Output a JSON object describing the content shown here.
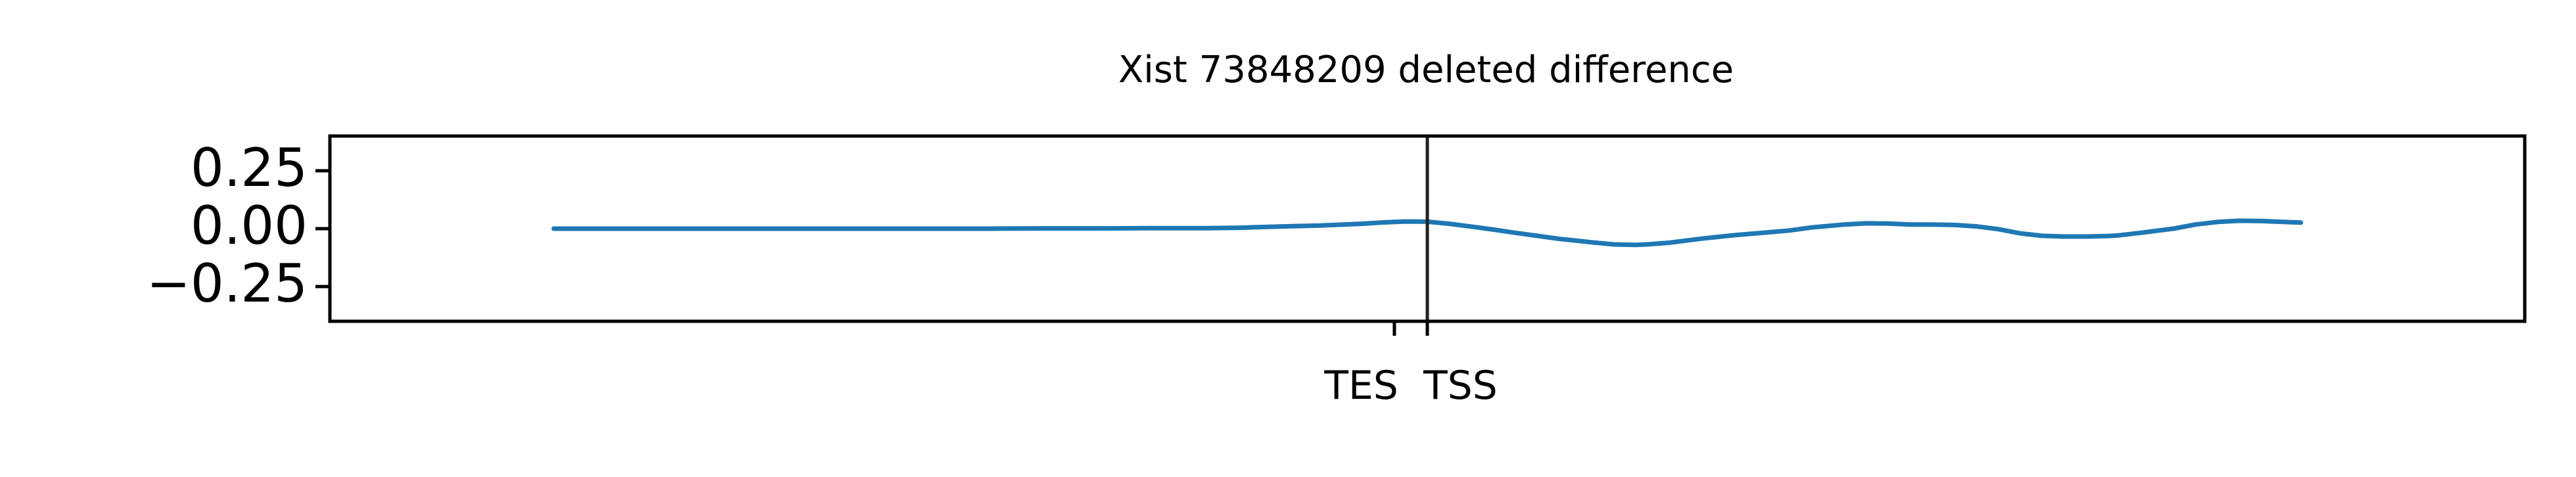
{
  "chart_data": {
    "type": "line",
    "title": "Xist 73848209 deleted difference",
    "xlabel": "",
    "ylabel": "",
    "ylim": [
      -0.4,
      0.4
    ],
    "yticks": [
      {
        "value": 0.25,
        "label": "0.25"
      },
      {
        "value": 0.0,
        "label": "0.00"
      },
      {
        "value": -0.25,
        "label": "−0.25"
      }
    ],
    "xlim": [
      -100,
      100
    ],
    "xticks": [
      {
        "value": -3,
        "label": "TES"
      },
      {
        "value": 0,
        "label": "TSS"
      }
    ],
    "vline": 0,
    "grid": false,
    "legend": "none",
    "series": [
      {
        "color": "#1f77b4",
        "x": [
          -79.6,
          -75,
          -70,
          -65,
          -60,
          -55,
          -50,
          -45,
          -40,
          -35,
          -30,
          -25,
          -20,
          -17,
          -15,
          -12,
          -10,
          -8,
          -6,
          -4,
          -2,
          0,
          2,
          4,
          6,
          8,
          10,
          12,
          15,
          17,
          19,
          20,
          22,
          25,
          28,
          30,
          33,
          35,
          38,
          40,
          42,
          44,
          46,
          48,
          50,
          52,
          54,
          56,
          58,
          60,
          62,
          63,
          65,
          68,
          70,
          72,
          74,
          76,
          78,
          79.6
        ],
        "y": [
          0.0,
          0.0,
          0.0,
          0.0,
          0.0,
          0.0,
          0.0,
          0.0,
          0.0,
          0.001,
          0.001,
          0.002,
          0.002,
          0.004,
          0.007,
          0.011,
          0.013,
          0.017,
          0.021,
          0.027,
          0.031,
          0.03,
          0.021,
          0.009,
          -0.004,
          -0.018,
          -0.031,
          -0.044,
          -0.059,
          -0.068,
          -0.07,
          -0.068,
          -0.061,
          -0.043,
          -0.028,
          -0.02,
          -0.008,
          0.005,
          0.018,
          0.023,
          0.022,
          0.018,
          0.018,
          0.016,
          0.01,
          -0.002,
          -0.02,
          -0.031,
          -0.034,
          -0.034,
          -0.032,
          -0.029,
          -0.018,
          0.0,
          0.018,
          0.029,
          0.034,
          0.033,
          0.029,
          0.026
        ]
      }
    ]
  }
}
